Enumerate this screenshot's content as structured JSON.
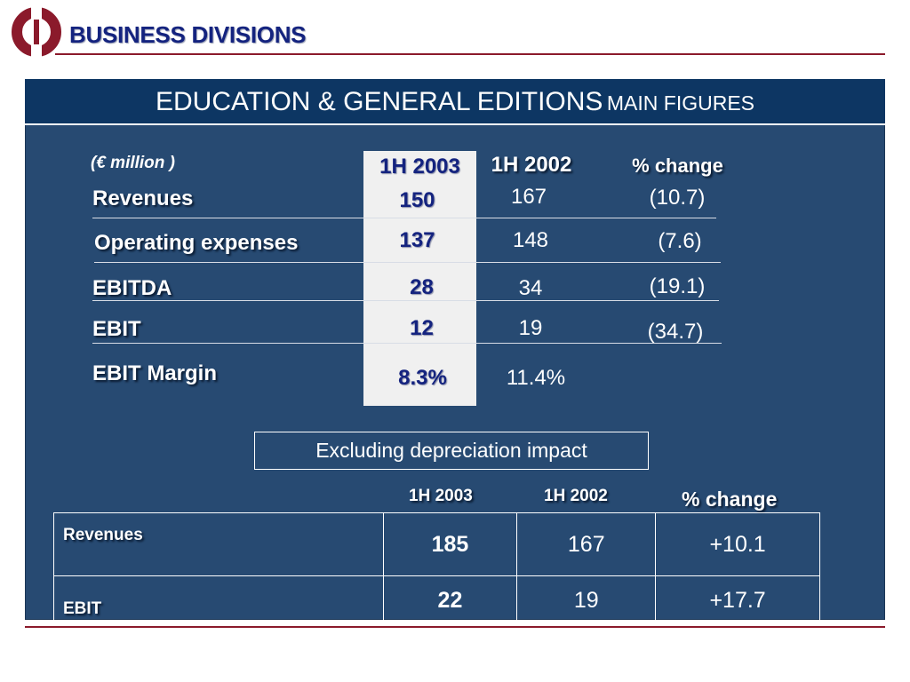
{
  "header": {
    "title": "BUSINESS DIVISIONS",
    "brand_color": "#8b1a2b",
    "title_color": "#14237f"
  },
  "panel": {
    "title_main": "EDUCATION & GENERAL EDITIONS",
    "title_sub": "MAIN FIGURES",
    "bg_color": "#274a72",
    "title_bg_color": "#0d3663"
  },
  "table1": {
    "unit": "(€ million )",
    "headers": [
      "1H 2003",
      "1H 2002",
      "% change"
    ],
    "rows": [
      {
        "label": "Revenues",
        "h2003": "150",
        "h2002": "167",
        "change": "(10.7)"
      },
      {
        "label": "Operating expenses",
        "h2003": "137",
        "h2002": "148",
        "change": "(7.6)"
      },
      {
        "label": "EBITDA",
        "h2003": "28",
        "h2002": "34",
        "change": "(19.1)"
      },
      {
        "label": "EBIT",
        "h2003": "12",
        "h2002": "19",
        "change": "(34.7)"
      },
      {
        "label": "EBIT Margin",
        "h2003": "8.3%",
        "h2002": "11.4%",
        "change": ""
      }
    ]
  },
  "note": "Excluding depreciation impact",
  "table2": {
    "headers": [
      "1H 2003",
      "1H 2002",
      "% change"
    ],
    "rows": [
      {
        "label": "Revenues",
        "h2003": "185",
        "h2002": "167",
        "change": "+10.1"
      },
      {
        "label": "EBIT",
        "h2003": "22",
        "h2002": "19",
        "change": "+17.7"
      }
    ]
  }
}
